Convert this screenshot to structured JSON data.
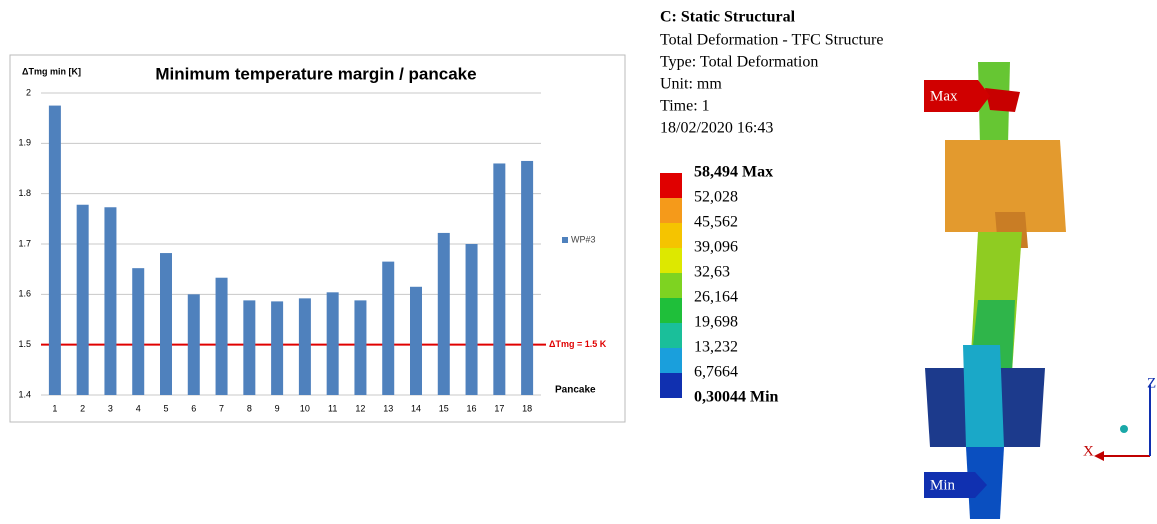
{
  "chart_data": {
    "type": "bar",
    "title": "Minimum temperature margin / pancake",
    "y_label": "ΔTmg min [K]",
    "x_label": "Pancake",
    "categories": [
      "1",
      "2",
      "3",
      "4",
      "5",
      "6",
      "7",
      "8",
      "9",
      "10",
      "11",
      "12",
      "13",
      "14",
      "15",
      "16",
      "17",
      "18"
    ],
    "series": [
      {
        "name": "WP#3",
        "color": "#4f81bd",
        "values": [
          1.975,
          1.778,
          1.773,
          1.652,
          1.682,
          1.6,
          1.633,
          1.588,
          1.586,
          1.592,
          1.604,
          1.588,
          1.665,
          1.615,
          1.722,
          1.7,
          1.86,
          1.865
        ]
      }
    ],
    "ylim": [
      1.4,
      2
    ],
    "yticks": [
      1.4,
      1.5,
      1.6,
      1.7,
      1.8,
      1.9,
      2
    ],
    "grid": true,
    "legend": "right",
    "reference_line": {
      "value": 1.5,
      "label": "ΔTmg = 1.5 K",
      "color": "#e00000"
    }
  },
  "ansys": {
    "header": [
      "C: Static Structural",
      "Total Deformation - TFC Structure",
      "Type: Total Deformation",
      "Unit: mm",
      "Time: 1",
      "18/02/2020 16:43"
    ],
    "legend": [
      "58,494 Max",
      "52,028",
      "45,562",
      "39,096",
      "32,63",
      "26,164",
      "19,698",
      "13,232",
      "6,7664",
      "0,30044 Min"
    ],
    "max_tag": "Max",
    "min_tag": "Min",
    "axis_x": "X",
    "axis_z": "Z"
  }
}
